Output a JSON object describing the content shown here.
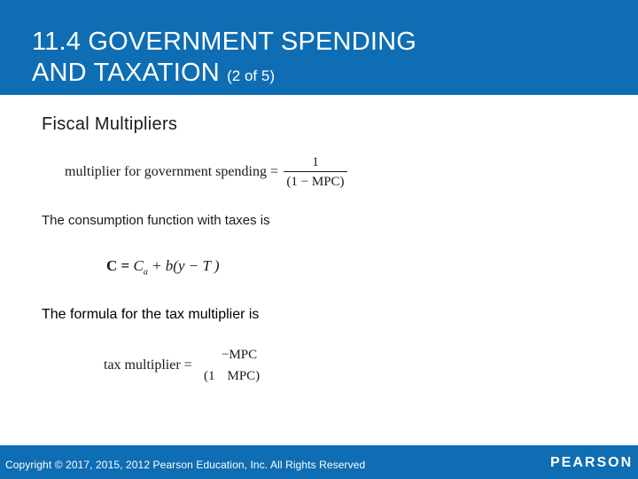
{
  "header": {
    "title_line1": "11.4 GOVERNMENT SPENDING",
    "title_line2": "AND TAXATION",
    "title_part": "(2 of 5)"
  },
  "content": {
    "subheading": "Fiscal Multipliers",
    "eq_gov_label": "multiplier for government spending =",
    "eq_gov_numerator": "1",
    "eq_gov_denominator": "(1 − MPC)",
    "consumption_intro": "The consumption function with taxes is",
    "eq_cons_C": "C",
    "eq_cons_eq": " = ",
    "eq_cons_Ca": "C",
    "eq_cons_a": "a",
    "eq_cons_rest": " + b(y − T )",
    "tax_intro": "The formula for the tax multiplier is",
    "eq_tax_label": "tax multiplier =",
    "eq_tax_numerator": "−MPC",
    "eq_tax_den_open": "(1",
    "eq_tax_den_close": "MPC)"
  },
  "footer": {
    "copyright": "Copyright © 2017, 2015, 2012 Pearson Education, Inc. All Rights Reserved",
    "logo": "PEARSON"
  },
  "colors": {
    "brand_blue": "#0f6db3",
    "text": "#1a1a1a",
    "background": "#ffffff"
  }
}
